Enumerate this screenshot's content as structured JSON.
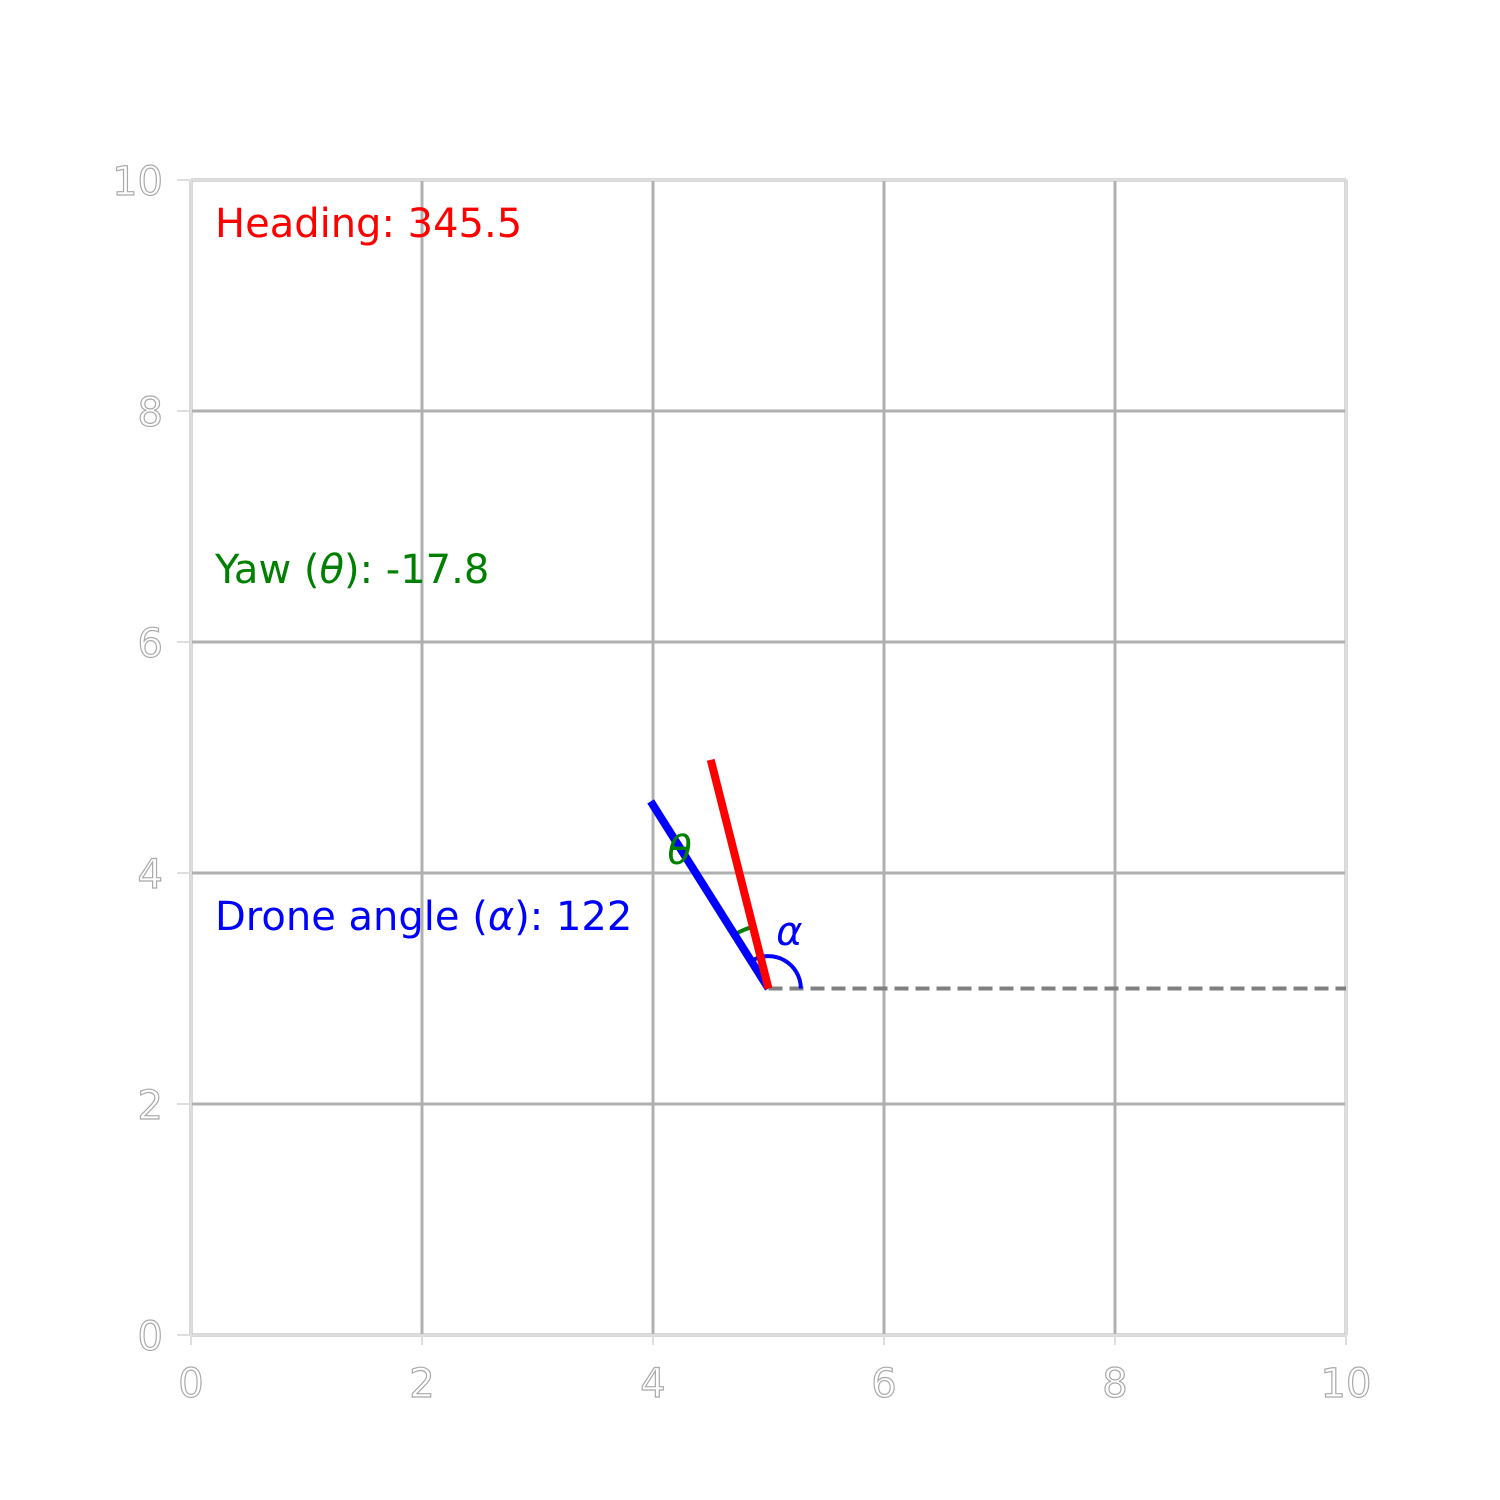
{
  "chart_data": {
    "type": "diagram",
    "xlim": [
      0,
      10
    ],
    "ylim": [
      0,
      10
    ],
    "grid": true,
    "x_ticks": [
      "0",
      "2",
      "4",
      "6",
      "8",
      "10"
    ],
    "y_ticks": [
      "0",
      "2",
      "4",
      "6",
      "8",
      "10"
    ],
    "x_tick_values": [
      0,
      2,
      4,
      6,
      8,
      10
    ],
    "y_tick_values": [
      0,
      2,
      4,
      6,
      8,
      10
    ],
    "origin": [
      5,
      3
    ],
    "reference_line": {
      "from": [
        5,
        3
      ],
      "to": [
        10,
        3
      ],
      "style": "dashed",
      "color": "#808080"
    },
    "drone_direction": {
      "from": [
        5,
        3
      ],
      "to": [
        3.98,
        4.62
      ],
      "color": "#0000ff"
    },
    "heading_direction": {
      "from": [
        5,
        3
      ],
      "to": [
        4.5,
        4.98
      ],
      "color": "#ff0000"
    },
    "alpha_arc": {
      "center": [
        5,
        3
      ],
      "radius_units": 0.28,
      "start_deg": 0,
      "end_deg": 122,
      "color": "#0000ff"
    },
    "theta_arc": {
      "center": [
        5,
        3
      ],
      "radius_units": 0.55,
      "start_deg": 104,
      "end_deg": 122,
      "color": "#008000"
    },
    "theta_symbol": "θ",
    "alpha_symbol": "α",
    "theta_symbol_pos": [
      4.23,
      4.2
    ],
    "alpha_symbol_pos": [
      5.18,
      3.5
    ]
  },
  "annotations": {
    "heading": {
      "label": "Heading: ",
      "value": "345.5",
      "color": "#ff0000"
    },
    "yaw": {
      "prefix": "Yaw (",
      "symbol": "θ",
      "suffix": "): ",
      "value": "-17.8",
      "color": "#008000"
    },
    "drone_angle": {
      "prefix": "Drone angle (",
      "symbol": "α",
      "suffix": "): ",
      "value": "122",
      "color": "#0000ff"
    }
  },
  "colors": {
    "grid": "#b0b0b0",
    "axis_frame": "#dddddd",
    "tick_label_outline": "#aaaaaa"
  }
}
